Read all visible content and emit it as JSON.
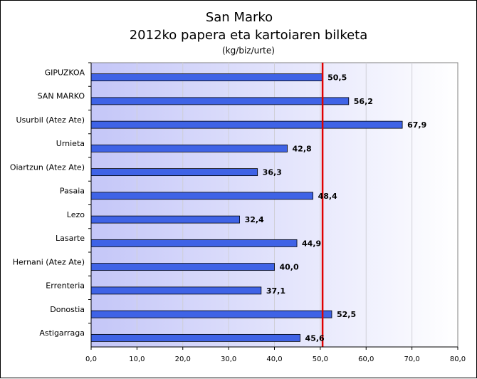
{
  "chart_data": {
    "type": "bar",
    "orientation": "horizontal",
    "title": "San Marko",
    "title_line2": "2012ko papera eta kartoiaren bilketa",
    "subtitle": "(kg/biz/urte)",
    "categories": [
      "GIPUZKOA",
      "SAN MARKO",
      "Usurbil (Atez Ate)",
      "Urnieta",
      "Oiartzun (Atez Ate)",
      "Pasaia",
      "Lezo",
      "Lasarte",
      "Hernani (Atez Ate)",
      "Errenteria",
      "Donostia",
      "Astigarraga"
    ],
    "values": [
      50.5,
      56.2,
      67.9,
      42.8,
      36.3,
      48.4,
      32.4,
      44.9,
      40.0,
      37.1,
      52.5,
      45.6
    ],
    "value_labels": [
      "50,5",
      "56,2",
      "67,9",
      "42,8",
      "36,3",
      "48,4",
      "32,4",
      "44,9",
      "40,0",
      "37,1",
      "52,5",
      "45,6"
    ],
    "xlim": [
      0,
      80
    ],
    "x_ticks": [
      0,
      10,
      20,
      30,
      40,
      50,
      60,
      70,
      80
    ],
    "x_tick_labels": [
      "0,0",
      "10,0",
      "20,0",
      "30,0",
      "40,0",
      "50,0",
      "60,0",
      "70,0",
      "80,0"
    ],
    "reference_line": 50.5,
    "grid": true,
    "legend": "none",
    "colors": {
      "bar_fill": "#3f63e6",
      "bar_stroke": "#000000",
      "reference_line": "#e00000",
      "plot_bg_left": "#c4c6f8",
      "plot_bg_right": "#ffffff",
      "grid": "#d0d0d8"
    }
  }
}
